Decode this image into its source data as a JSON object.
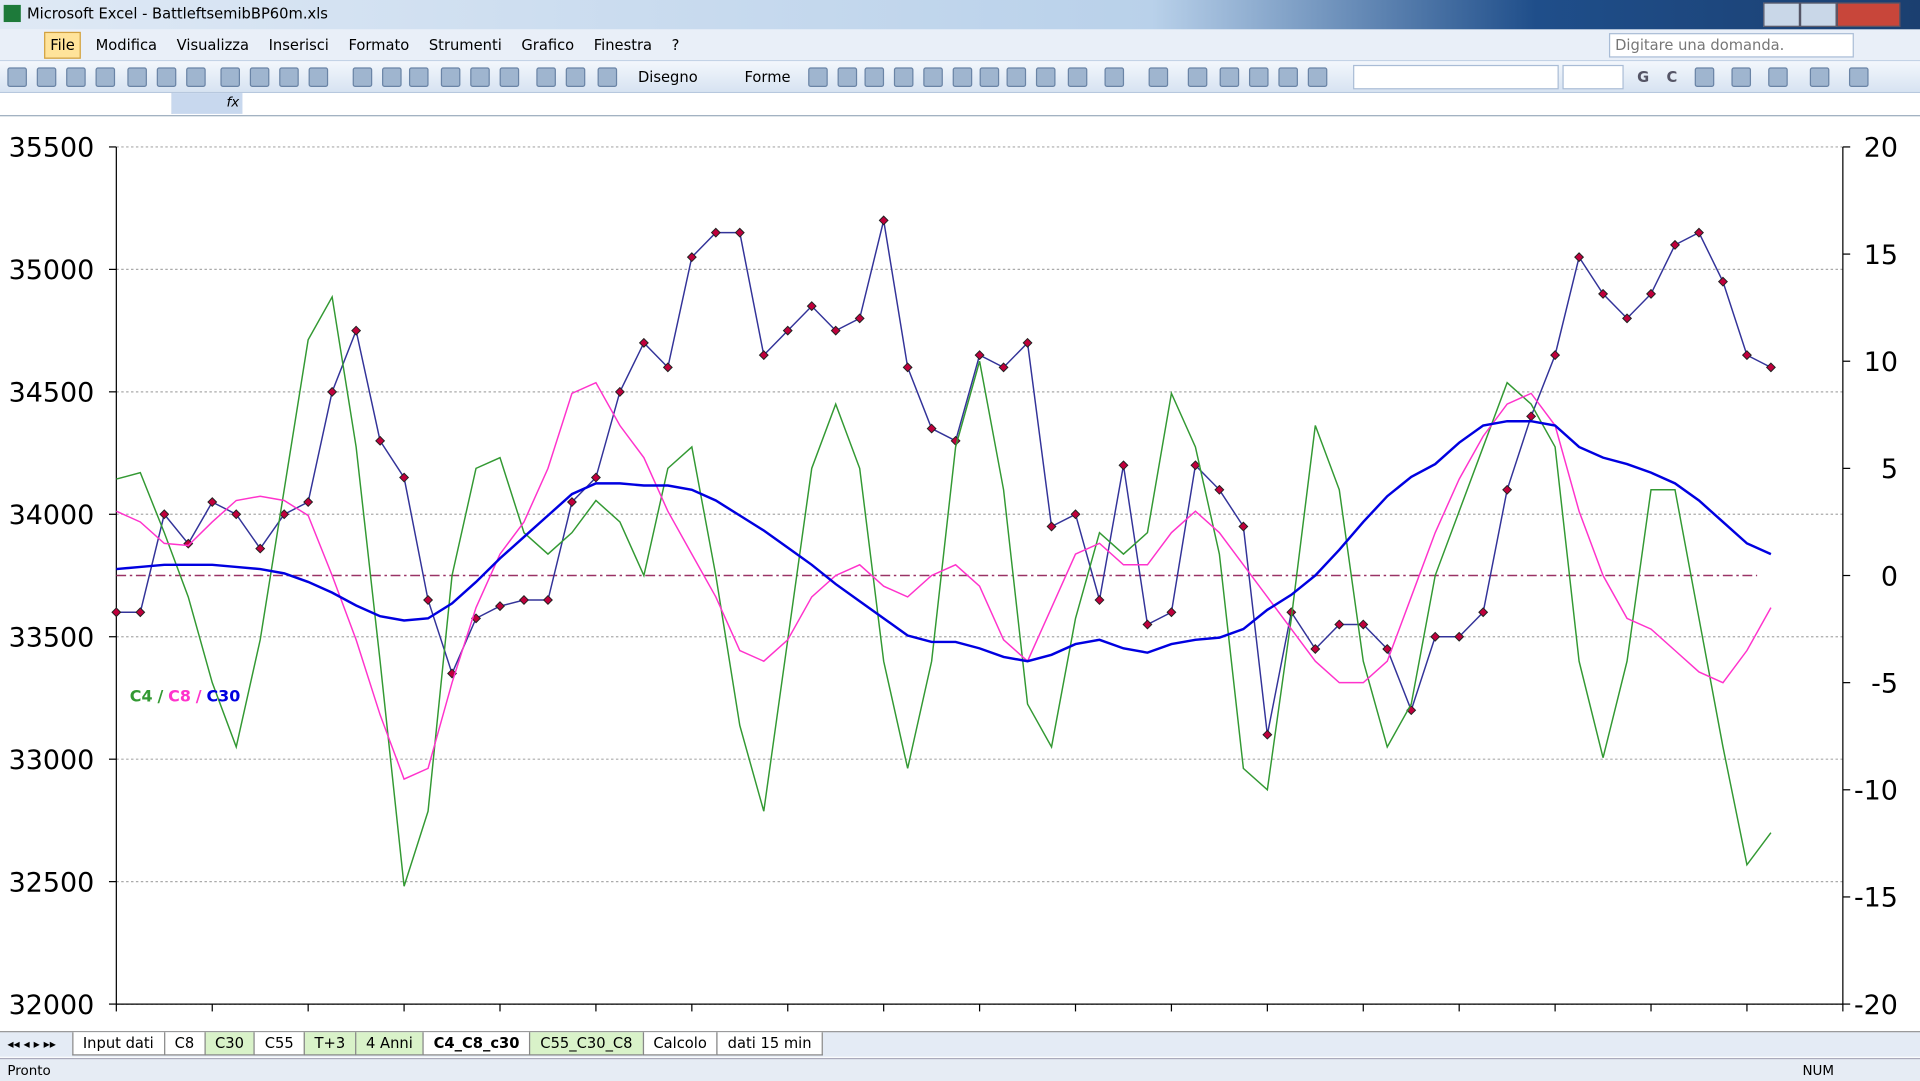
{
  "window": {
    "title": "Microsoft Excel - BattleftsemibBP60m.xls"
  },
  "menu": [
    "File",
    "Modifica",
    "Visualizza",
    "Inserisci",
    "Formato",
    "Strumenti",
    "Grafico",
    "Finestra",
    "?"
  ],
  "help_box": "Digitare una domanda.",
  "toolbar": {
    "drawing": "Disegno",
    "shapes": "Forme",
    "bold": "G",
    "italic": "C"
  },
  "formula_bar": {
    "fx": "fx"
  },
  "sheet_tabs": [
    "Input dati",
    "C8",
    "C30",
    "C55",
    "T+3",
    "4 Anni",
    "C4_C8_c30",
    "C55_C30_C8",
    "Calcolo",
    "dati 15 min"
  ],
  "active_tab": "C4_C8_c30",
  "status": {
    "left": "Pronto",
    "right": "NUM"
  },
  "chart_data": {
    "type": "line",
    "legend_separators": [
      "/",
      "/"
    ],
    "xlim": [
      0,
      18
    ],
    "xticks": [
      0,
      1,
      2,
      3,
      4,
      5,
      6,
      7,
      8,
      9,
      10,
      11,
      12,
      13,
      14,
      15,
      16,
      17,
      18
    ],
    "ylim": [
      32000,
      35500
    ],
    "yticks": [
      32000,
      32500,
      33000,
      33500,
      34000,
      34500,
      35000,
      35500
    ],
    "y2lim": [
      -20,
      20
    ],
    "y2ticks": [
      -20,
      -15,
      -10,
      -5,
      0,
      5,
      10,
      15,
      20
    ],
    "grid": true,
    "reference_line": {
      "axis": "y2",
      "value": 0,
      "color": "#993366"
    },
    "x": [
      0,
      0.25,
      0.5,
      0.75,
      1,
      1.25,
      1.5,
      1.75,
      2,
      2.25,
      2.5,
      2.75,
      3,
      3.25,
      3.5,
      3.75,
      4,
      4.25,
      4.5,
      4.75,
      5,
      5.25,
      5.5,
      5.75,
      6,
      6.25,
      6.5,
      6.75,
      7,
      7.25,
      7.5,
      7.75,
      8,
      8.25,
      8.5,
      8.75,
      9,
      9.25,
      9.5,
      9.75,
      10,
      10.25,
      10.5,
      10.75,
      11,
      11.25,
      11.5,
      11.75,
      12,
      12.25,
      12.5,
      12.75,
      13,
      13.25,
      13.5,
      13.75,
      14,
      14.25,
      14.5,
      14.75,
      15,
      15.25,
      15.5,
      15.75,
      16,
      16.25,
      16.5,
      16.75,
      17,
      17.25
    ],
    "series": [
      {
        "color": "#333399",
        "marker_color": "#c0003c",
        "values": [
          33600,
          33600,
          34000,
          33880,
          34050,
          34000,
          33860,
          34000,
          34050,
          34500,
          34750,
          34300,
          34150,
          33650,
          33350,
          33575,
          33625,
          33650,
          33650,
          34050,
          34150,
          34500,
          34700,
          34600,
          35050,
          35150,
          35150,
          34650,
          34750,
          34850,
          34750,
          34800,
          35200,
          34600,
          34350,
          34300,
          34650,
          34600,
          34700,
          33950,
          34000,
          33650,
          34200,
          33550,
          33600,
          34200,
          34100,
          33950,
          33100,
          33600,
          33450,
          33550,
          33550,
          33450,
          33200,
          33500,
          33500,
          33600,
          34100,
          34400,
          34650,
          35050,
          34900,
          34800,
          34900,
          35100,
          35150,
          34950,
          34650,
          34600
        ]
      },
      {
        "name": "C4",
        "color": "#339933",
        "axis": "y2",
        "values": [
          4.5,
          4.8,
          2,
          -1,
          -5,
          -8,
          -3,
          4,
          11,
          13,
          6,
          -4,
          -14.5,
          -11,
          0,
          5,
          5.5,
          2,
          1,
          2,
          3.5,
          2.5,
          0,
          5,
          6,
          0,
          -7,
          -11,
          -3,
          5,
          8,
          5,
          -4,
          -9,
          -4,
          6,
          10,
          4,
          -6,
          -8,
          -2,
          2,
          1,
          2,
          8.5,
          6,
          1,
          -9,
          -10,
          -2,
          7,
          4,
          -4,
          -8,
          -6,
          0,
          3,
          6,
          9,
          8,
          6,
          -4,
          -8.5,
          -4,
          4,
          4,
          -2,
          -8,
          -13.5,
          -12
        ]
      },
      {
        "name": "C8",
        "color": "#ff33cc",
        "axis": "y2",
        "values": [
          3,
          2.5,
          1.5,
          1.4,
          2.5,
          3.5,
          3.7,
          3.5,
          2.8,
          0,
          -3,
          -6.5,
          -9.5,
          -9,
          -5,
          -1.5,
          1,
          2.5,
          5,
          8.5,
          9,
          7,
          5.5,
          3,
          1,
          -1,
          -3.5,
          -4,
          -3,
          -1,
          0,
          0.5,
          -0.5,
          -1,
          0,
          0.5,
          -0.5,
          -3,
          -4,
          -1.5,
          1,
          1.5,
          0.5,
          0.5,
          2,
          3,
          2,
          0.5,
          -1,
          -2.5,
          -4,
          -5,
          -5,
          -4,
          -1,
          2,
          4.5,
          6.5,
          8,
          8.5,
          7,
          3,
          0,
          -2,
          -2.5,
          -3.5,
          -4.5,
          -5,
          -3.5,
          -1.5
        ]
      },
      {
        "name": "C30",
        "color": "#0000e0",
        "axis": "y2",
        "values": [
          0.3,
          0.4,
          0.5,
          0.5,
          0.5,
          0.4,
          0.3,
          0.1,
          -0.3,
          -0.8,
          -1.4,
          -1.9,
          -2.1,
          -2,
          -1.3,
          -0.3,
          0.8,
          1.8,
          2.8,
          3.8,
          4.3,
          4.3,
          4.2,
          4.2,
          4,
          3.5,
          2.8,
          2.1,
          1.3,
          0.5,
          -0.4,
          -1.2,
          -2,
          -2.8,
          -3.1,
          -3.1,
          -3.4,
          -3.8,
          -4,
          -3.7,
          -3.2,
          -3,
          -3.4,
          -3.6,
          -3.2,
          -3,
          -2.9,
          -2.5,
          -1.6,
          -0.9,
          0,
          1.2,
          2.5,
          3.7,
          4.6,
          5.2,
          6.2,
          7,
          7.2,
          7.2,
          7,
          6,
          5.5,
          5.2,
          4.8,
          4.3,
          3.5,
          2.5,
          1.5,
          1
        ]
      }
    ]
  }
}
